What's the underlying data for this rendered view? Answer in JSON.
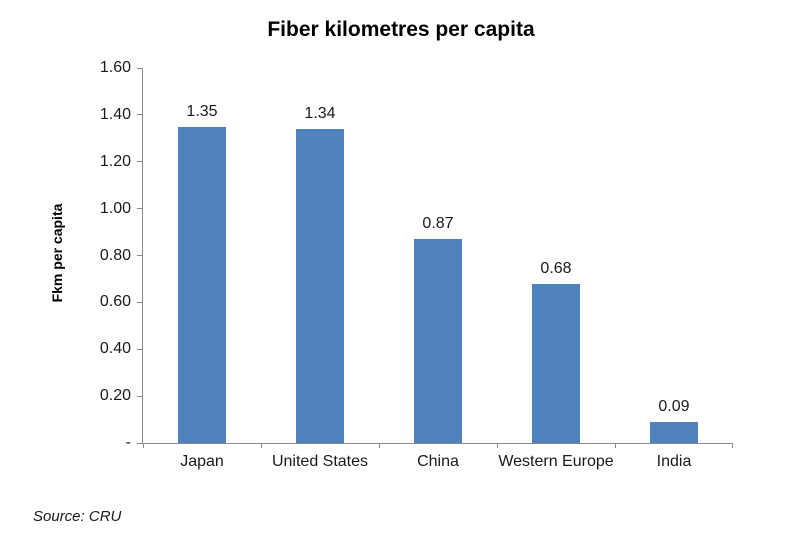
{
  "title": "Fiber kilometres per capita",
  "source_note": "Source: CRU",
  "chart_data": {
    "type": "bar",
    "title": "Fiber kilometres per capita",
    "xlabel": "",
    "ylabel": "Fkm per capita",
    "categories": [
      "Japan",
      "United States",
      "China",
      "Western Europe",
      "India"
    ],
    "values": [
      1.35,
      1.34,
      0.87,
      0.68,
      0.09
    ],
    "data_labels": [
      "1.35",
      "1.34",
      "0.87",
      "0.68",
      "0.09"
    ],
    "ylim": [
      0,
      1.6
    ],
    "ytick_step": 0.2,
    "ytick_labels": [
      "-",
      "0.20",
      "0.40",
      "0.60",
      "0.80",
      "1.00",
      "1.20",
      "1.40",
      "1.60"
    ],
    "grid": false,
    "legend": null,
    "bar_color": "#4F81BD",
    "axis_color": "#898989",
    "text_color": "#1a1a1a",
    "background_color": "#ffffff"
  }
}
